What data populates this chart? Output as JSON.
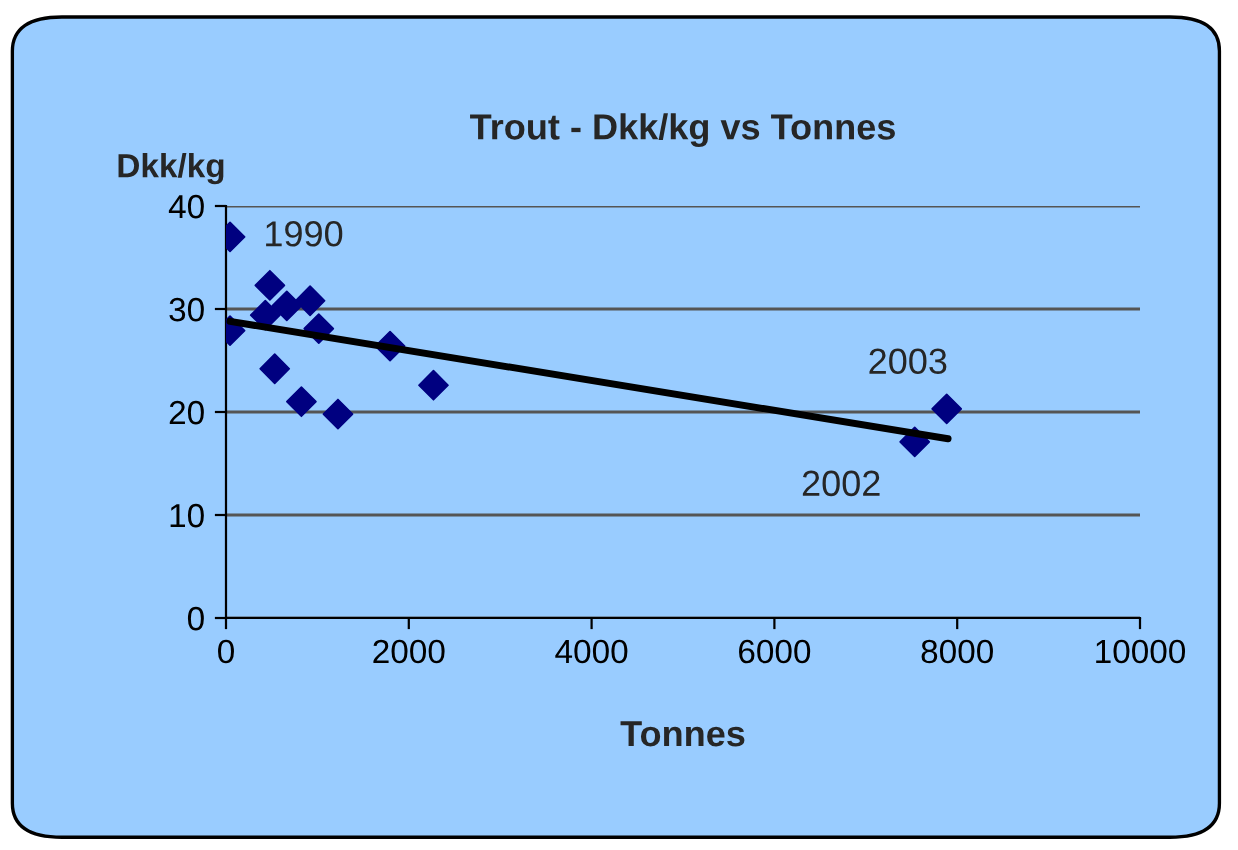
{
  "chart_data": {
    "type": "scatter",
    "title": "Trout - Dkk/kg vs Tonnes",
    "xlabel": "Tonnes",
    "ylabel": "Dkk/kg",
    "series": [
      {
        "color": "#000080",
        "marker": "diamond",
        "x": [
          44,
          44,
          480,
          430,
          665,
          920,
          1015,
          533,
          825,
          1225,
          1795,
          2270,
          7885,
          7535
        ],
        "values": [
          37.0,
          27.9,
          32.3,
          29.4,
          30.3,
          30.8,
          28.1,
          24.2,
          21.0,
          19.8,
          26.4,
          22.6,
          20.3,
          17.1
        ]
      },
      {
        "type": "line",
        "color": "#000000",
        "marker": "none",
        "x": [
          44,
          7900
        ],
        "values": [
          28.8,
          17.4
        ]
      }
    ],
    "annotations": [
      {
        "text": "1990",
        "x": 44,
        "y": 37.0
      },
      {
        "text": "2003",
        "x": 7885,
        "y": 20.3
      },
      {
        "text": "2002",
        "x": 7535,
        "y": 17.1
      }
    ],
    "xlim": [
      0,
      10000
    ],
    "xticks": [
      0,
      2000,
      4000,
      6000,
      8000,
      10000
    ],
    "ylim": [
      0,
      40
    ],
    "yticks": [
      0,
      10,
      20,
      30,
      40
    ],
    "grid": "y",
    "legend": false
  }
}
